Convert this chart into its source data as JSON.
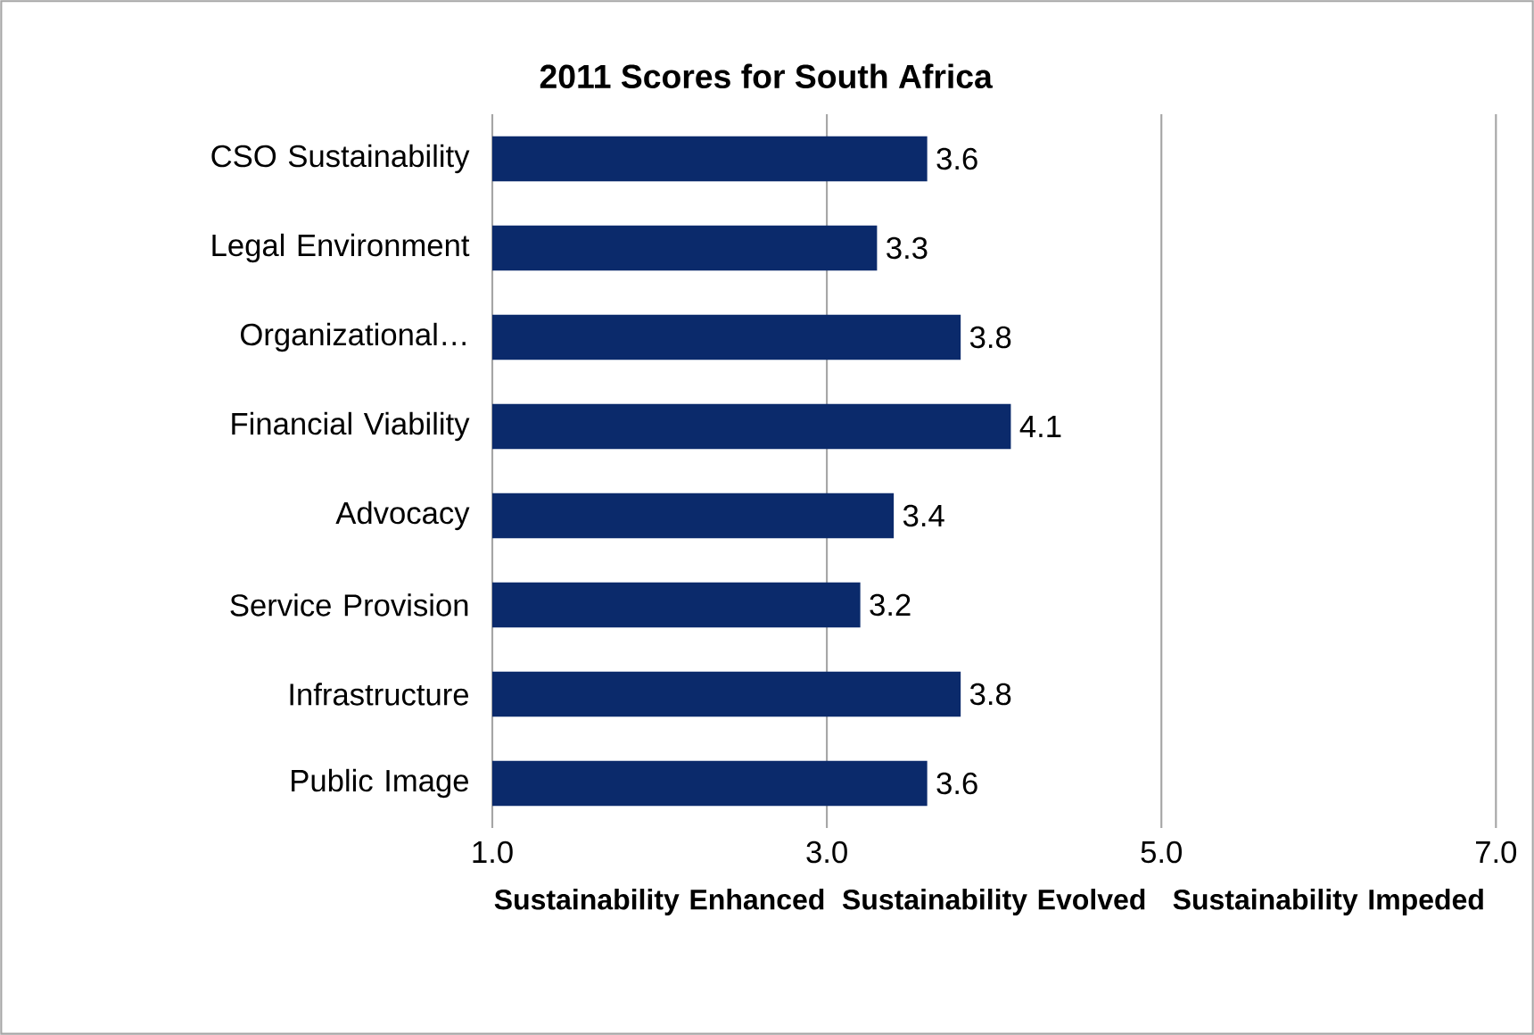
{
  "chart_data": {
    "type": "bar",
    "orientation": "horizontal",
    "title": "2011 Scores for South Africa",
    "categories": [
      "CSO Sustainability",
      "Legal Environment",
      "Organizational…",
      "Financial Viability",
      "Advocacy",
      "Service Provision",
      "Infrastructure",
      "Public Image"
    ],
    "values": [
      3.6,
      3.3,
      3.8,
      4.1,
      3.4,
      3.2,
      3.8,
      3.6
    ],
    "color": "#0b2a6b",
    "data_labels": true,
    "xlim": [
      1,
      7
    ],
    "xticks": [
      {
        "value": 1,
        "label": "1.0"
      },
      {
        "value": 3,
        "label": "3.0"
      },
      {
        "value": 5,
        "label": "5.0"
      },
      {
        "value": 7,
        "label": "7.0"
      }
    ],
    "grid": "x",
    "annotations": [
      "**Sustainability** **Enhanced**",
      "**Sustainability** **Evolved**",
      "**Sustainability** **Impeded**"
    ]
  }
}
